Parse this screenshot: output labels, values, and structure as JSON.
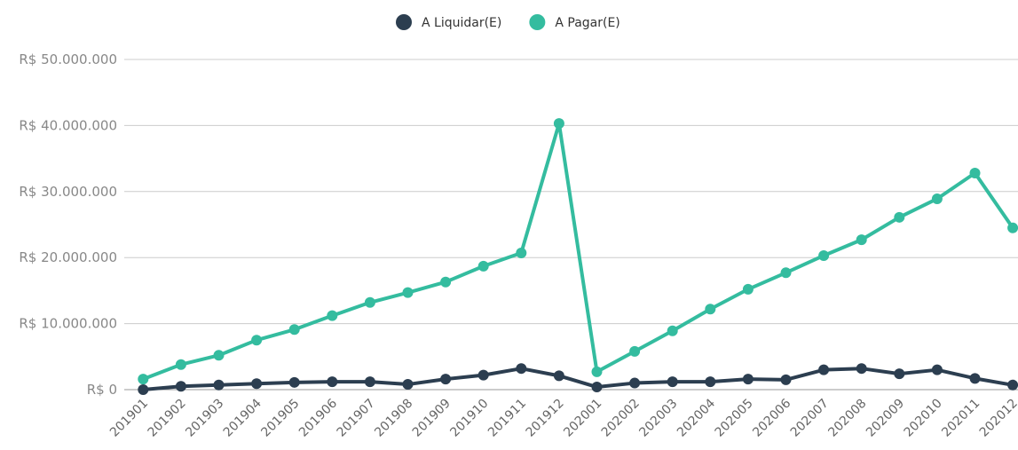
{
  "chart_data": {
    "type": "line",
    "categories": [
      "201901",
      "201902",
      "201903",
      "201904",
      "201905",
      "201906",
      "201907",
      "201908",
      "201909",
      "201910",
      "201911",
      "201912",
      "202001",
      "202002",
      "202003",
      "202004",
      "202005",
      "202006",
      "202007",
      "202008",
      "202009",
      "202010",
      "202011",
      "202012"
    ],
    "series": [
      {
        "name": "A Liquidar(E)",
        "color": "#2c3e50",
        "values": [
          0,
          500000,
          700000,
          900000,
          1100000,
          1200000,
          1200000,
          800000,
          1600000,
          2200000,
          3200000,
          2100000,
          400000,
          1000000,
          1200000,
          1200000,
          1600000,
          1500000,
          3000000,
          3200000,
          2400000,
          3000000,
          1700000,
          700000
        ]
      },
      {
        "name": "A Pagar(E)",
        "color": "#34bc9f",
        "values": [
          1600000,
          3800000,
          5200000,
          7500000,
          9100000,
          11200000,
          13200000,
          14700000,
          16300000,
          18700000,
          20700000,
          40300000,
          2700000,
          5800000,
          8900000,
          12200000,
          15200000,
          17700000,
          20300000,
          22700000,
          26100000,
          28900000,
          32800000,
          24500000
        ]
      }
    ],
    "ylim": [
      0,
      50000000
    ],
    "yticks": [
      {
        "value": 0,
        "label": "R$ 0"
      },
      {
        "value": 10000000,
        "label": "R$ 10.000.000"
      },
      {
        "value": 20000000,
        "label": "R$ 20.000.000"
      },
      {
        "value": 30000000,
        "label": "R$ 30.000.000"
      },
      {
        "value": 40000000,
        "label": "R$ 40.000.000"
      },
      {
        "value": 50000000,
        "label": "R$ 50.000.000"
      }
    ],
    "grid": true,
    "legend": "top"
  }
}
